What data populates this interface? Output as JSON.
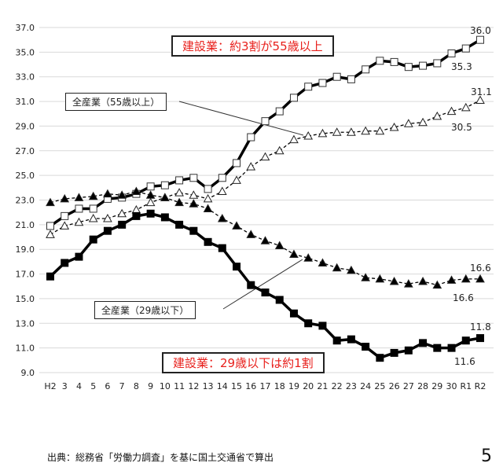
{
  "chart_data": {
    "type": "line",
    "categories": [
      "H2",
      "3",
      "4",
      "5",
      "6",
      "7",
      "8",
      "9",
      "10",
      "11",
      "12",
      "13",
      "14",
      "15",
      "16",
      "17",
      "18",
      "19",
      "20",
      "21",
      "22",
      "23",
      "24",
      "25",
      "26",
      "27",
      "28",
      "29",
      "30",
      "R1",
      "R2"
    ],
    "ylim": [
      9.0,
      37.0
    ],
    "yticks": [
      "9.0",
      "11.0",
      "13.0",
      "15.0",
      "17.0",
      "19.0",
      "21.0",
      "23.0",
      "25.0",
      "27.0",
      "29.0",
      "31.0",
      "33.0",
      "35.0",
      "37.0"
    ],
    "grid": true,
    "series": [
      {
        "key": "const55",
        "marker": "open-square",
        "line": "solid-thick",
        "values": [
          20.9,
          21.7,
          22.3,
          22.3,
          23.1,
          23.2,
          23.5,
          24.1,
          24.2,
          24.6,
          24.8,
          23.9,
          24.8,
          26.0,
          28.1,
          29.4,
          30.2,
          31.3,
          32.2,
          32.5,
          33.0,
          32.8,
          33.6,
          34.3,
          34.2,
          33.8,
          33.9,
          34.1,
          34.9,
          35.3,
          36.0
        ]
      },
      {
        "key": "all55",
        "marker": "open-triangle",
        "line": "dashed",
        "values": [
          20.2,
          20.9,
          21.2,
          21.5,
          21.5,
          21.9,
          22.2,
          22.8,
          23.2,
          23.6,
          23.4,
          23.1,
          23.7,
          24.6,
          25.7,
          26.5,
          27.0,
          27.9,
          28.2,
          28.4,
          28.5,
          28.5,
          28.6,
          28.6,
          28.9,
          29.2,
          29.3,
          29.8,
          30.2,
          30.5,
          31.1
        ]
      },
      {
        "key": "all29",
        "marker": "filled-triangle",
        "line": "dashed",
        "values": [
          22.8,
          23.1,
          23.2,
          23.3,
          23.5,
          23.4,
          23.7,
          23.4,
          23.2,
          22.8,
          22.7,
          22.3,
          21.5,
          20.9,
          20.2,
          19.7,
          19.3,
          18.6,
          18.3,
          17.9,
          17.5,
          17.3,
          16.7,
          16.6,
          16.4,
          16.2,
          16.4,
          16.1,
          16.5,
          16.6,
          16.6
        ]
      },
      {
        "key": "const29",
        "marker": "filled-square",
        "line": "solid-thick",
        "values": [
          16.8,
          17.9,
          18.4,
          19.8,
          20.5,
          21.0,
          21.7,
          21.9,
          21.6,
          21.0,
          20.5,
          19.6,
          19.1,
          17.6,
          16.1,
          15.5,
          14.9,
          13.8,
          13.0,
          12.8,
          11.6,
          11.7,
          11.1,
          10.2,
          10.6,
          10.8,
          11.4,
          11.0,
          11.0,
          11.6,
          11.8
        ]
      }
    ],
    "data_labels": {
      "const55": "36.0",
      "r1_const55": "35.3",
      "all55": "31.1",
      "r1_all55": "30.5",
      "all29": "16.6",
      "r1_all29": "16.6",
      "const29": "11.8",
      "r1_const29": "11.6"
    },
    "annotations": {
      "const55": "建設業：約3割が55歳以上",
      "all55": "全産業（55歳以上）",
      "all29": "全産業（29歳以下）",
      "const29": "建設業：29歳以下は約1割"
    },
    "colors": {
      "annotation_red": "#e8201c",
      "grid": "#d9d9d9",
      "line": "#000000"
    }
  },
  "source": "出典：総務省「労働力調査」を基に国土交通省で算出",
  "page_number": "5"
}
